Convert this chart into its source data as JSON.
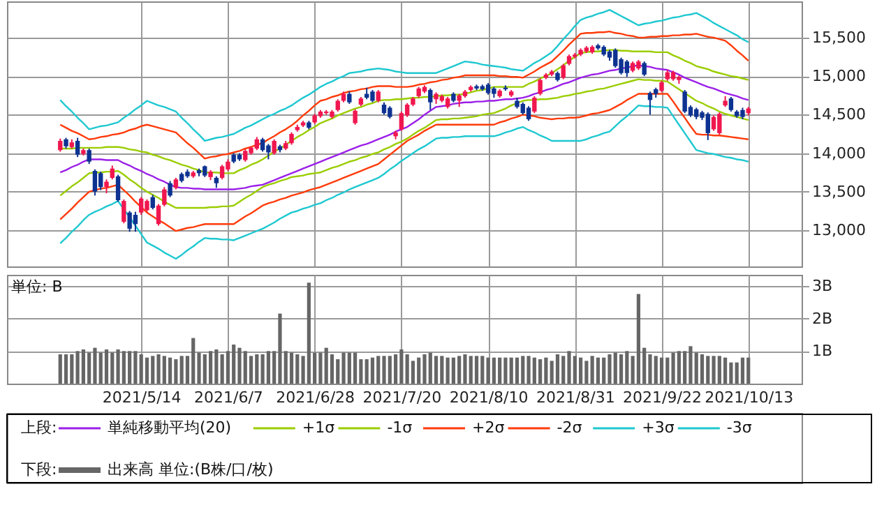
{
  "chart_data": [
    {
      "type": "candlestick",
      "legend": "bottom",
      "legend_title": "上段:",
      "grid": true,
      "tick_labels": "y",
      "categories": [
        null,
        null,
        null,
        null,
        null,
        null,
        null,
        null,
        null,
        null,
        null,
        null,
        null,
        null,
        "2021/5/14",
        null,
        null,
        null,
        null,
        null,
        null,
        null,
        null,
        null,
        null,
        null,
        null,
        null,
        null,
        "2021/6/7",
        null,
        null,
        null,
        null,
        null,
        null,
        null,
        null,
        null,
        null,
        null,
        null,
        null,
        null,
        "2021/6/28",
        null,
        null,
        null,
        null,
        null,
        null,
        null,
        null,
        null,
        null,
        null,
        null,
        null,
        null,
        "2021/7/20",
        null,
        null,
        null,
        null,
        null,
        null,
        null,
        null,
        null,
        null,
        null,
        null,
        null,
        null,
        "2021/8/10",
        null,
        null,
        null,
        null,
        null,
        null,
        null,
        null,
        null,
        null,
        null,
        null,
        null,
        null,
        "2021/8/31",
        null,
        null,
        null,
        null,
        null,
        null,
        null,
        null,
        null,
        null,
        null,
        null,
        null,
        null,
        "2021/9/22",
        null,
        null,
        null,
        null,
        null,
        null,
        null,
        null,
        null,
        null,
        null,
        null,
        null,
        null,
        "2021/10/13"
      ],
      "ylim": [
        12530,
        15970
      ],
      "yticks": [
        {
          "value": 13000,
          "label": "13,000"
        },
        {
          "value": 13500,
          "label": "13,500"
        },
        {
          "value": 14000,
          "label": "14,000"
        },
        {
          "value": 14500,
          "label": "14,500"
        },
        {
          "value": 15000,
          "label": "15,000"
        },
        {
          "value": 15500,
          "label": "15,500"
        }
      ],
      "ohlc": [
        [
          14040,
          14190,
          14020,
          14160
        ],
        [
          14180,
          14200,
          14060,
          14090
        ],
        [
          14080,
          14180,
          14060,
          14140
        ],
        [
          14160,
          14200,
          13950,
          13980
        ],
        [
          13990,
          14060,
          13970,
          14040
        ],
        [
          14040,
          14060,
          13860,
          13890
        ],
        [
          13770,
          13790,
          13450,
          13500
        ],
        [
          13740,
          13760,
          13520,
          13560
        ],
        [
          13560,
          13660,
          13480,
          13630
        ],
        [
          13680,
          13840,
          13660,
          13800
        ],
        [
          13700,
          13720,
          13370,
          13390
        ],
        [
          13110,
          13400,
          13090,
          13380
        ],
        [
          13230,
          13250,
          12980,
          13020
        ],
        [
          13200,
          13240,
          12980,
          13080
        ],
        [
          13230,
          13430,
          13200,
          13410
        ],
        [
          13260,
          13400,
          13240,
          13380
        ],
        [
          13430,
          13460,
          13270,
          13290
        ],
        [
          13080,
          13340,
          13060,
          13320
        ],
        [
          13330,
          13560,
          13310,
          13530
        ],
        [
          13610,
          13640,
          13430,
          13450
        ],
        [
          13550,
          13680,
          13530,
          13660
        ],
        [
          13730,
          13750,
          13620,
          13640
        ],
        [
          13760,
          13790,
          13680,
          13700
        ],
        [
          13700,
          13770,
          13680,
          13750
        ],
        [
          13780,
          13800,
          13700,
          13740
        ],
        [
          13830,
          13840,
          13690,
          13710
        ],
        [
          13690,
          13780,
          13650,
          13760
        ],
        [
          13680,
          13700,
          13550,
          13610
        ],
        [
          13680,
          13850,
          13660,
          13830
        ],
        [
          13790,
          13920,
          13770,
          13890
        ],
        [
          13980,
          14000,
          13870,
          13890
        ],
        [
          13980,
          14000,
          13900,
          13920
        ],
        [
          13910,
          14050,
          13890,
          14030
        ],
        [
          14000,
          14090,
          13980,
          14070
        ],
        [
          14060,
          14210,
          14040,
          14180
        ],
        [
          14180,
          14200,
          14020,
          14040
        ],
        [
          14100,
          14120,
          13920,
          14010
        ],
        [
          14000,
          14180,
          13980,
          14160
        ],
        [
          14090,
          14110,
          14010,
          14040
        ],
        [
          14060,
          14160,
          14040,
          14130
        ],
        [
          14130,
          14270,
          14110,
          14250
        ],
        [
          14300,
          14370,
          14280,
          14340
        ],
        [
          14360,
          14420,
          14340,
          14400
        ],
        [
          14400,
          14420,
          14310,
          14330
        ],
        [
          14400,
          14510,
          14380,
          14490
        ],
        [
          14480,
          14560,
          14460,
          14540
        ],
        [
          14520,
          14560,
          14500,
          14540
        ],
        [
          14470,
          14560,
          14450,
          14540
        ],
        [
          14560,
          14700,
          14540,
          14680
        ],
        [
          14680,
          14800,
          14660,
          14770
        ],
        [
          14770,
          14800,
          14640,
          14660
        ],
        [
          14390,
          14570,
          14370,
          14550
        ],
        [
          14630,
          14730,
          14610,
          14710
        ],
        [
          14770,
          14850,
          14700,
          14720
        ],
        [
          14800,
          14820,
          14660,
          14680
        ],
        [
          14680,
          14820,
          14660,
          14800
        ],
        [
          14630,
          14660,
          14500,
          14520
        ],
        [
          14590,
          14610,
          14450,
          14470
        ],
        [
          14220,
          14290,
          14180,
          14270
        ],
        [
          14310,
          14540,
          14290,
          14520
        ],
        [
          14490,
          14650,
          14470,
          14630
        ],
        [
          14630,
          14730,
          14610,
          14710
        ],
        [
          14740,
          14860,
          14720,
          14840
        ],
        [
          14800,
          14880,
          14780,
          14860
        ],
        [
          14820,
          14840,
          14560,
          14660
        ],
        [
          14700,
          14790,
          14640,
          14770
        ],
        [
          14680,
          14760,
          14660,
          14740
        ],
        [
          14600,
          14730,
          14580,
          14710
        ],
        [
          14770,
          14790,
          14660,
          14680
        ],
        [
          14680,
          14770,
          14600,
          14750
        ],
        [
          14740,
          14820,
          14720,
          14800
        ],
        [
          14820,
          14880,
          14800,
          14860
        ],
        [
          14870,
          14890,
          14820,
          14840
        ],
        [
          14870,
          14890,
          14810,
          14830
        ],
        [
          14890,
          14910,
          14760,
          14780
        ],
        [
          14840,
          14860,
          14720,
          14770
        ],
        [
          14740,
          14830,
          14720,
          14810
        ],
        [
          14850,
          14880,
          14810,
          14830
        ],
        [
          14750,
          14820,
          14730,
          14800
        ],
        [
          14680,
          14720,
          14580,
          14600
        ],
        [
          14640,
          14660,
          14500,
          14520
        ],
        [
          14590,
          14610,
          14420,
          14440
        ],
        [
          14540,
          14740,
          14520,
          14720
        ],
        [
          14770,
          14970,
          14750,
          14950
        ],
        [
          14980,
          15040,
          14960,
          15020
        ],
        [
          15020,
          15080,
          15000,
          15060
        ],
        [
          15040,
          15060,
          14930,
          14950
        ],
        [
          14980,
          15160,
          14960,
          15140
        ],
        [
          15160,
          15280,
          15140,
          15260
        ],
        [
          15250,
          15300,
          15230,
          15280
        ],
        [
          15280,
          15360,
          15260,
          15340
        ],
        [
          15320,
          15390,
          15300,
          15370
        ],
        [
          15310,
          15400,
          15290,
          15380
        ],
        [
          15400,
          15420,
          15340,
          15360
        ],
        [
          15380,
          15400,
          15260,
          15280
        ],
        [
          15320,
          15340,
          15200,
          15240
        ],
        [
          15340,
          15360,
          15110,
          15130
        ],
        [
          15220,
          15240,
          15020,
          15040
        ],
        [
          15190,
          15210,
          14990,
          15040
        ],
        [
          15070,
          15190,
          15050,
          15170
        ],
        [
          15100,
          15210,
          15080,
          15190
        ],
        [
          15170,
          15190,
          15000,
          15020
        ],
        [
          14780,
          14800,
          14500,
          14690
        ],
        [
          14830,
          14850,
          14720,
          14770
        ],
        [
          14810,
          14940,
          14790,
          14920
        ],
        [
          14960,
          15080,
          14940,
          15050
        ],
        [
          14960,
          15070,
          14940,
          15050
        ],
        [
          14950,
          15010,
          14900,
          14990
        ],
        [
          14800,
          14820,
          14520,
          14540
        ],
        [
          14600,
          14620,
          14470,
          14490
        ],
        [
          14570,
          14590,
          14440,
          14470
        ],
        [
          14530,
          14550,
          14430,
          14460
        ],
        [
          14510,
          14530,
          14170,
          14260
        ],
        [
          14310,
          14490,
          14290,
          14470
        ],
        [
          14260,
          14530,
          14240,
          14510
        ],
        [
          14620,
          14740,
          14600,
          14680
        ],
        [
          14710,
          14730,
          14540,
          14560
        ],
        [
          14540,
          14560,
          14460,
          14480
        ],
        [
          14560,
          14590,
          14440,
          14470
        ],
        [
          14520,
          14600,
          14490,
          14580
        ]
      ],
      "colors": [
        "#f0174f",
        "#0d3291",
        "#f0174f",
        "#0d3291",
        "#f0174f",
        "#0d3291",
        "#0d3291",
        "#0d3291",
        "#f0174f",
        "#f0174f",
        "#0d3291",
        "#f0174f",
        "#0d3291",
        "#0d3291",
        "#f0174f",
        "#f0174f",
        "#0d3291",
        "#f0174f",
        "#f0174f",
        "#0d3291",
        "#f0174f",
        "#0d3291",
        "#0d3291",
        "#f0174f",
        "#0d3291",
        "#0d3291",
        "#f0174f",
        "#0d3291",
        "#f0174f",
        "#f0174f",
        "#0d3291",
        "#0d3291",
        "#f0174f",
        "#f0174f",
        "#f0174f",
        "#0d3291",
        "#0d3291",
        "#f0174f",
        "#0d3291",
        "#f0174f",
        "#f0174f",
        "#f0174f",
        "#f0174f",
        "#0d3291",
        "#f0174f",
        "#f0174f",
        "#f0174f",
        "#f0174f",
        "#f0174f",
        "#f0174f",
        "#0d3291",
        "#f0174f",
        "#f0174f",
        "#0d3291",
        "#0d3291",
        "#f0174f",
        "#0d3291",
        "#0d3291",
        "#f0174f",
        "#f0174f",
        "#f0174f",
        "#f0174f",
        "#f0174f",
        "#f0174f",
        "#0d3291",
        "#f0174f",
        "#f0174f",
        "#f0174f",
        "#0d3291",
        "#f0174f",
        "#f0174f",
        "#f0174f",
        "#0d3291",
        "#0d3291",
        "#0d3291",
        "#0d3291",
        "#f0174f",
        "#0d3291",
        "#f0174f",
        "#0d3291",
        "#0d3291",
        "#0d3291",
        "#f0174f",
        "#f0174f",
        "#f0174f",
        "#f0174f",
        "#0d3291",
        "#f0174f",
        "#f0174f",
        "#f0174f",
        "#f0174f",
        "#f0174f",
        "#f0174f",
        "#0d3291",
        "#0d3291",
        "#0d3291",
        "#0d3291",
        "#0d3291",
        "#0d3291",
        "#f0174f",
        "#f0174f",
        "#0d3291",
        "#0d3291",
        "#0d3291",
        "#f0174f",
        "#f0174f",
        "#f0174f",
        "#f0174f",
        "#0d3291",
        "#0d3291",
        "#0d3291",
        "#0d3291",
        "#0d3291",
        "#f0174f",
        "#f0174f",
        "#f0174f",
        "#0d3291",
        "#0d3291",
        "#0d3291",
        "#f0174f"
      ],
      "series": [
        {
          "name": "単純移動平均(20)",
          "type": "line",
          "color": "#9b1fe8",
          "values": [
            13750,
            13780,
            13820,
            13850,
            13890,
            13920,
            13920,
            13920,
            13910,
            13910,
            13910,
            13870,
            13840,
            13800,
            13770,
            13730,
            13700,
            13660,
            13630,
            13590,
            13560,
            13550,
            13550,
            13540,
            13540,
            13530,
            13530,
            13530,
            13530,
            13530,
            13530,
            13540,
            13550,
            13570,
            13580,
            13590,
            13620,
            13650,
            13680,
            13710,
            13740,
            13770,
            13800,
            13830,
            13860,
            13890,
            13920,
            13950,
            13980,
            14010,
            14040,
            14070,
            14100,
            14120,
            14150,
            14180,
            14210,
            14240,
            14280,
            14310,
            14340,
            14390,
            14440,
            14500,
            14550,
            14600,
            14610,
            14620,
            14640,
            14650,
            14660,
            14660,
            14670,
            14670,
            14680,
            14680,
            14690,
            14700,
            14700,
            14710,
            14720,
            14740,
            14770,
            14790,
            14820,
            14840,
            14870,
            14900,
            14920,
            14950,
            14980,
            15000,
            15020,
            15030,
            15050,
            15070,
            15080,
            15100,
            15110,
            15130,
            15140,
            15130,
            15120,
            15100,
            15090,
            15080,
            15050,
            15020,
            14980,
            14950,
            14920,
            14890,
            14860,
            14840,
            14810,
            14780,
            14760,
            14740,
            14710,
            14690
          ]
        },
        {
          "name": "+1σ",
          "type": "line",
          "color": "#9acd00",
          "values": [
            14060,
            14060,
            14060,
            14070,
            14070,
            14070,
            14070,
            14070,
            14080,
            14080,
            14080,
            14070,
            14050,
            14040,
            14020,
            14010,
            13980,
            13960,
            13930,
            13910,
            13880,
            13850,
            13830,
            13800,
            13780,
            13750,
            13750,
            13750,
            13740,
            13740,
            13740,
            13780,
            13810,
            13850,
            13880,
            13920,
            13970,
            14020,
            14060,
            14110,
            14160,
            14210,
            14250,
            14300,
            14340,
            14390,
            14420,
            14450,
            14490,
            14520,
            14550,
            14580,
            14600,
            14630,
            14650,
            14680,
            14690,
            14690,
            14700,
            14700,
            14710,
            14720,
            14720,
            14730,
            14730,
            14740,
            14750,
            14750,
            14760,
            14760,
            14770,
            14790,
            14810,
            14820,
            14840,
            14860,
            14860,
            14860,
            14860,
            14860,
            14860,
            14900,
            14930,
            14970,
            15000,
            15040,
            15090,
            15140,
            15200,
            15250,
            15300,
            15310,
            15320,
            15320,
            15330,
            15340,
            15340,
            15330,
            15330,
            15320,
            15320,
            15320,
            15320,
            15310,
            15310,
            15310,
            15270,
            15240,
            15200,
            15170,
            15130,
            15110,
            15090,
            15060,
            15040,
            15020,
            15000,
            14990,
            14970,
            14950
          ]
        },
        {
          "name": "-1σ",
          "type": "line",
          "color": "#9acd00",
          "values": [
            13450,
            13510,
            13570,
            13620,
            13680,
            13740,
            13750,
            13750,
            13760,
            13760,
            13770,
            13720,
            13660,
            13610,
            13550,
            13500,
            13460,
            13420,
            13370,
            13330,
            13290,
            13290,
            13290,
            13290,
            13290,
            13290,
            13300,
            13300,
            13310,
            13310,
            13320,
            13370,
            13420,
            13460,
            13510,
            13560,
            13590,
            13610,
            13640,
            13660,
            13690,
            13700,
            13710,
            13730,
            13740,
            13750,
            13780,
            13810,
            13830,
            13860,
            13890,
            13910,
            13940,
            13960,
            13990,
            14010,
            14050,
            14080,
            14120,
            14150,
            14190,
            14240,
            14290,
            14330,
            14380,
            14430,
            14440,
            14440,
            14450,
            14450,
            14460,
            14470,
            14480,
            14500,
            14510,
            14520,
            14550,
            14580,
            14620,
            14650,
            14680,
            14690,
            14690,
            14700,
            14700,
            14710,
            14720,
            14740,
            14750,
            14770,
            14780,
            14800,
            14810,
            14830,
            14840,
            14860,
            14880,
            14900,
            14920,
            14940,
            14960,
            14950,
            14950,
            14940,
            14940,
            14930,
            14880,
            14830,
            14780,
            14730,
            14680,
            14650,
            14610,
            14580,
            14540,
            14510,
            14490,
            14470,
            14450,
            14430
          ]
        },
        {
          "name": "+2σ",
          "type": "line",
          "color": "#ff3b0a",
          "values": [
            14370,
            14330,
            14290,
            14260,
            14220,
            14180,
            14190,
            14210,
            14220,
            14240,
            14250,
            14270,
            14300,
            14320,
            14350,
            14370,
            14350,
            14330,
            14310,
            14290,
            14270,
            14200,
            14130,
            14070,
            14000,
            13930,
            13950,
            13960,
            13980,
            13990,
            14010,
            14030,
            14060,
            14080,
            14110,
            14130,
            14180,
            14220,
            14270,
            14310,
            14360,
            14420,
            14490,
            14550,
            14620,
            14680,
            14700,
            14730,
            14750,
            14780,
            14800,
            14810,
            14830,
            14840,
            14860,
            14870,
            14870,
            14870,
            14860,
            14860,
            14860,
            14870,
            14890,
            14900,
            14920,
            14930,
            14950,
            14960,
            14980,
            14990,
            15010,
            15010,
            15010,
            15010,
            15010,
            15010,
            15000,
            15000,
            14990,
            14990,
            14980,
            15020,
            15060,
            15110,
            15150,
            15190,
            15260,
            15330,
            15410,
            15480,
            15550,
            15560,
            15560,
            15570,
            15570,
            15580,
            15560,
            15550,
            15530,
            15520,
            15500,
            15500,
            15510,
            15510,
            15520,
            15520,
            15530,
            15530,
            15540,
            15540,
            15550,
            15530,
            15510,
            15500,
            15480,
            15460,
            15400,
            15330,
            15270,
            15200
          ]
        },
        {
          "name": "-2σ",
          "type": "line",
          "color": "#ff3b0a",
          "values": [
            13140,
            13210,
            13280,
            13360,
            13430,
            13500,
            13520,
            13540,
            13550,
            13570,
            13590,
            13520,
            13450,
            13370,
            13300,
            13230,
            13180,
            13130,
            13090,
            13040,
            12990,
            13010,
            13030,
            13040,
            13060,
            13080,
            13080,
            13080,
            13080,
            13080,
            13080,
            13130,
            13180,
            13220,
            13270,
            13320,
            13350,
            13370,
            13400,
            13420,
            13450,
            13470,
            13490,
            13520,
            13540,
            13560,
            13590,
            13620,
            13650,
            13680,
            13710,
            13740,
            13770,
            13800,
            13830,
            13860,
            13920,
            13980,
            14040,
            14100,
            14160,
            14200,
            14240,
            14290,
            14330,
            14370,
            14370,
            14370,
            14370,
            14370,
            14370,
            14370,
            14370,
            14370,
            14370,
            14370,
            14400,
            14420,
            14450,
            14470,
            14500,
            14490,
            14480,
            14460,
            14450,
            14440,
            14450,
            14450,
            14460,
            14460,
            14470,
            14490,
            14510,
            14520,
            14540,
            14560,
            14600,
            14640,
            14690,
            14730,
            14770,
            14770,
            14770,
            14770,
            14770,
            14770,
            14670,
            14560,
            14460,
            14350,
            14250,
            14240,
            14240,
            14230,
            14230,
            14220,
            14210,
            14200,
            14190,
            14180
          ]
        },
        {
          "name": "+3σ",
          "type": "line",
          "color": "#1ec8d0",
          "values": [
            14690,
            14610,
            14540,
            14460,
            14390,
            14310,
            14330,
            14350,
            14360,
            14380,
            14400,
            14460,
            14510,
            14570,
            14620,
            14680,
            14650,
            14620,
            14600,
            14570,
            14540,
            14460,
            14390,
            14310,
            14240,
            14160,
            14180,
            14200,
            14210,
            14230,
            14250,
            14290,
            14330,
            14360,
            14400,
            14440,
            14480,
            14510,
            14550,
            14580,
            14620,
            14670,
            14720,
            14760,
            14810,
            14860,
            14900,
            14930,
            14970,
            15000,
            15040,
            15050,
            15060,
            15080,
            15090,
            15100,
            15090,
            15080,
            15060,
            15050,
            15040,
            15040,
            15040,
            15040,
            15040,
            15040,
            15070,
            15100,
            15130,
            15160,
            15190,
            15180,
            15170,
            15150,
            15140,
            15130,
            15120,
            15110,
            15090,
            15080,
            15070,
            15120,
            15170,
            15210,
            15260,
            15310,
            15390,
            15480,
            15560,
            15650,
            15730,
            15760,
            15780,
            15810,
            15830,
            15860,
            15820,
            15780,
            15740,
            15700,
            15660,
            15680,
            15690,
            15710,
            15720,
            15740,
            15760,
            15770,
            15790,
            15800,
            15820,
            15780,
            15740,
            15690,
            15650,
            15610,
            15570,
            15530,
            15480,
            15440
          ]
        },
        {
          "name": "-3σ",
          "type": "line",
          "color": "#1ec8d0",
          "values": [
            12830,
            12900,
            12980,
            13050,
            13130,
            13200,
            13240,
            13270,
            13310,
            13340,
            13380,
            13270,
            13170,
            13060,
            12950,
            12840,
            12800,
            12760,
            12710,
            12670,
            12630,
            12680,
            12740,
            12790,
            12850,
            12900,
            12890,
            12890,
            12880,
            12880,
            12870,
            12900,
            12930,
            12960,
            12990,
            13020,
            13060,
            13100,
            13150,
            13190,
            13230,
            13250,
            13280,
            13300,
            13330,
            13350,
            13390,
            13420,
            13460,
            13490,
            13530,
            13560,
            13590,
            13620,
            13650,
            13680,
            13730,
            13790,
            13840,
            13900,
            13950,
            14000,
            14050,
            14090,
            14140,
            14190,
            14200,
            14200,
            14210,
            14210,
            14220,
            14220,
            14220,
            14220,
            14220,
            14220,
            14240,
            14270,
            14290,
            14320,
            14340,
            14300,
            14270,
            14230,
            14200,
            14160,
            14160,
            14160,
            14160,
            14160,
            14160,
            14180,
            14210,
            14230,
            14260,
            14280,
            14350,
            14420,
            14480,
            14550,
            14620,
            14610,
            14610,
            14600,
            14600,
            14590,
            14480,
            14370,
            14260,
            14150,
            14040,
            14020,
            14000,
            13990,
            13970,
            13950,
            13940,
            13920,
            13910,
            13890
          ]
        }
      ]
    },
    {
      "type": "bar",
      "legend": "bottom",
      "legend_title": "下段:",
      "grid": true,
      "ylabel": "単位: B",
      "categories": [
        null,
        null,
        null,
        null,
        null,
        null,
        null,
        null,
        null,
        null,
        null,
        null,
        null,
        null,
        "2021/5/14",
        null,
        null,
        null,
        null,
        null,
        null,
        null,
        null,
        null,
        null,
        null,
        null,
        null,
        null,
        "2021/6/7",
        null,
        null,
        null,
        null,
        null,
        null,
        null,
        null,
        null,
        null,
        null,
        null,
        null,
        null,
        "2021/6/28",
        null,
        null,
        null,
        null,
        null,
        null,
        null,
        null,
        null,
        null,
        null,
        null,
        null,
        null,
        "2021/7/20",
        null,
        null,
        null,
        null,
        null,
        null,
        null,
        null,
        null,
        null,
        null,
        null,
        null,
        null,
        "2021/8/10",
        null,
        null,
        null,
        null,
        null,
        null,
        null,
        null,
        null,
        null,
        null,
        null,
        null,
        null,
        "2021/8/31",
        null,
        null,
        null,
        null,
        null,
        null,
        null,
        null,
        null,
        null,
        null,
        null,
        null,
        null,
        "2021/9/22",
        null,
        null,
        null,
        null,
        null,
        null,
        null,
        null,
        null,
        null,
        null,
        null,
        null,
        null,
        "2021/10/13"
      ],
      "ylim": [
        0,
        3.34
      ],
      "yticks": [
        {
          "value": 1,
          "label": "1B"
        },
        {
          "value": 2,
          "label": "2B"
        },
        {
          "value": 3,
          "label": "3B"
        }
      ],
      "series": [
        {
          "name": "出来高 単位:(B株/口/枚)",
          "color": "#666666",
          "values": [
            0.9,
            0.9,
            0.9,
            1.0,
            1.05,
            0.95,
            1.1,
            0.95,
            1.05,
            0.95,
            1.05,
            1.0,
            1.0,
            1.0,
            0.9,
            0.8,
            0.85,
            0.9,
            0.85,
            0.8,
            0.75,
            0.85,
            0.85,
            1.4,
            0.95,
            0.9,
            1.0,
            1.05,
            0.9,
            1.0,
            1.2,
            1.1,
            1.0,
            0.85,
            0.9,
            0.9,
            1.0,
            1.0,
            2.15,
            1.0,
            0.95,
            0.9,
            0.85,
            3.1,
            0.95,
            0.95,
            1.1,
            0.9,
            0.75,
            0.95,
            0.95,
            0.95,
            0.75,
            0.75,
            0.8,
            0.85,
            0.85,
            0.85,
            0.9,
            1.05,
            0.9,
            0.7,
            0.8,
            0.9,
            0.95,
            0.85,
            0.85,
            0.8,
            0.8,
            0.85,
            0.9,
            0.85,
            0.85,
            0.85,
            0.8,
            0.8,
            0.8,
            0.8,
            0.8,
            0.8,
            0.85,
            0.85,
            0.8,
            0.75,
            0.8,
            0.7,
            0.9,
            0.85,
            1.0,
            0.85,
            0.8,
            0.7,
            0.85,
            0.8,
            0.8,
            0.9,
            0.95,
            0.9,
            1.0,
            0.85,
            2.75,
            1.1,
            0.9,
            0.85,
            0.8,
            0.8,
            0.95,
            1.0,
            1.0,
            1.15,
            0.95,
            0.9,
            0.85,
            0.85,
            0.85,
            0.8,
            0.65,
            0.65,
            0.8,
            0.8
          ]
        }
      ]
    }
  ]
}
